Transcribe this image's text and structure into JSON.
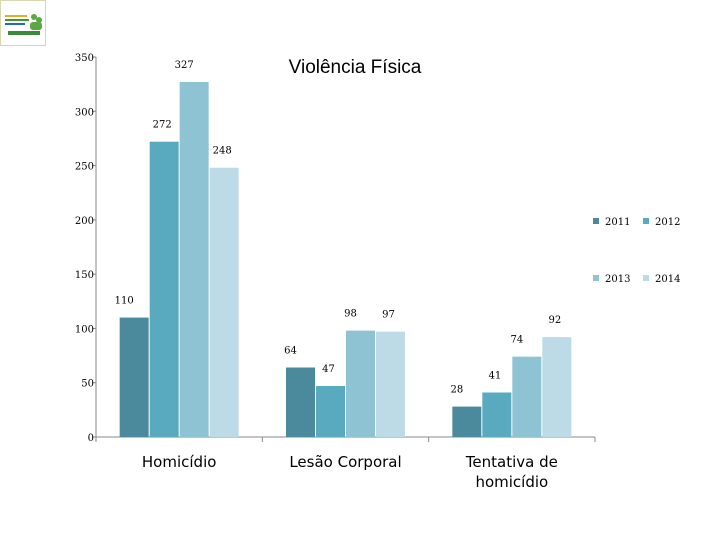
{
  "logo": {
    "icon": "organization-logo-icon"
  },
  "chart_data": {
    "type": "bar",
    "title": "Violência Física",
    "categories": [
      "Homicídio",
      "Lesão Corporal",
      "Tentativa de homicídio"
    ],
    "series": [
      {
        "name": "2011",
        "values": [
          110,
          64,
          28
        ],
        "color": "#4a8a9c"
      },
      {
        "name": "2012",
        "values": [
          272,
          47,
          41
        ],
        "color": "#5aaabf"
      },
      {
        "name": "2013",
        "values": [
          327,
          98,
          74
        ],
        "color": "#8ec3d4"
      },
      {
        "name": "2014",
        "values": [
          248,
          97,
          92
        ],
        "color": "#bddbe6"
      }
    ],
    "ylim": [
      0,
      350
    ],
    "yticks": [
      0,
      50,
      100,
      150,
      200,
      250,
      300,
      350
    ],
    "xlabel": "",
    "ylabel": "",
    "grid": false,
    "legend_position": "right"
  }
}
